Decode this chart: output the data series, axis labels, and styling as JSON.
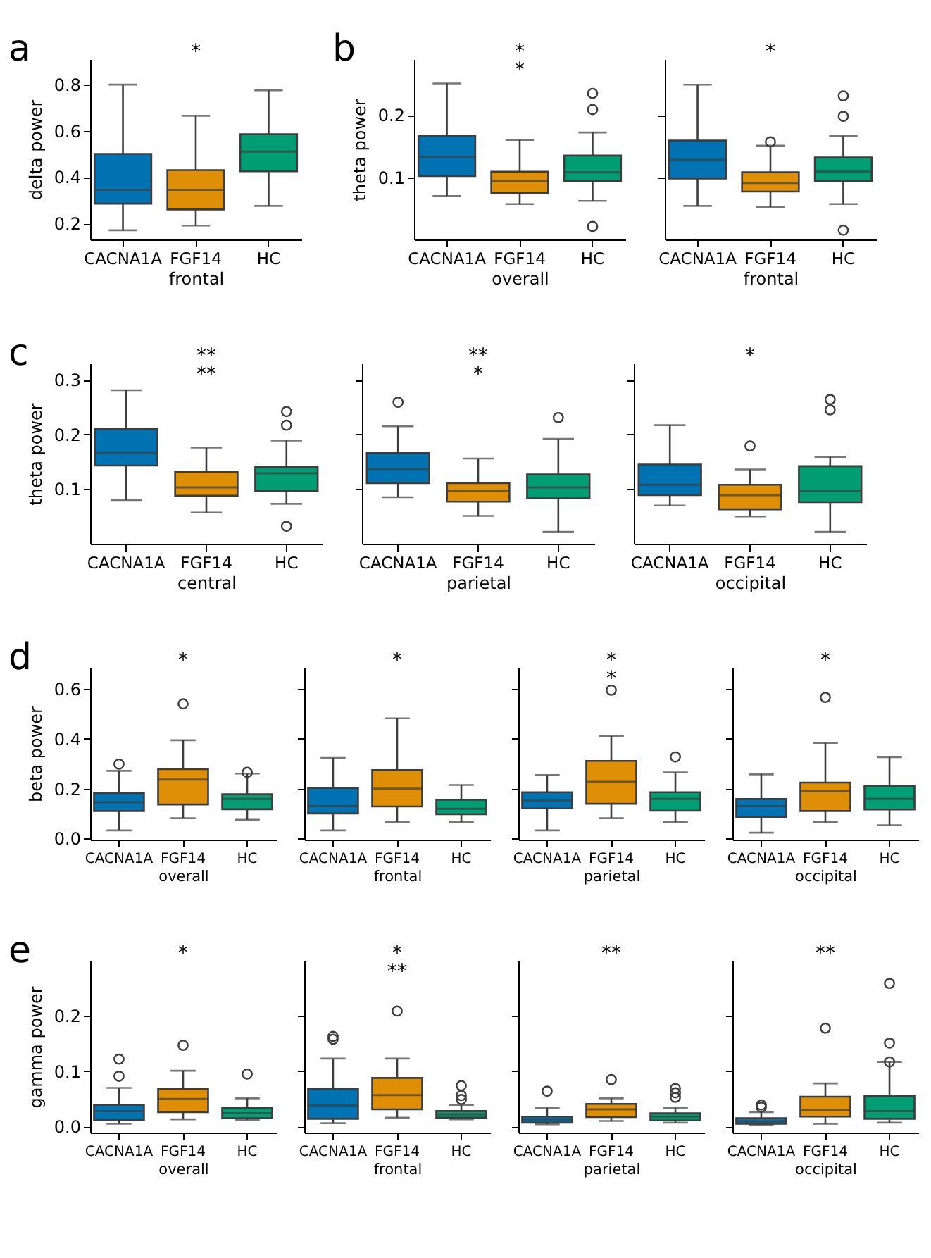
{
  "chart_data": [
    {
      "type": "box",
      "title": "a",
      "ylabel": "delta power",
      "xlabel": "frontal",
      "categories": [
        "CACNA1A",
        "FGF14",
        "HC"
      ],
      "colors": [
        "#0173b2",
        "#de8f05",
        "#029e73"
      ],
      "ylim": [
        0.13,
        0.91
      ],
      "yticks": [
        0.2,
        0.4,
        0.6,
        0.8
      ],
      "boxes": [
        {
          "low": 0.17,
          "q1": 0.285,
          "median": 0.345,
          "q3": 0.5,
          "high": 0.8
        },
        {
          "low": 0.19,
          "q1": 0.26,
          "median": 0.345,
          "q3": 0.43,
          "high": 0.665
        },
        {
          "low": 0.275,
          "q1": 0.425,
          "median": 0.51,
          "q3": 0.585,
          "high": 0.775
        }
      ],
      "annotations": [
        "*"
      ]
    },
    {
      "type": "box",
      "title": "b",
      "ylabel": "theta power",
      "xlabel": "overall",
      "categories": [
        "CACNA1A",
        "FGF14",
        "HC"
      ],
      "colors": [
        "#0173b2",
        "#de8f05",
        "#029e73"
      ],
      "ylim": [
        0.0,
        0.29
      ],
      "yticks": [
        0.1,
        0.2
      ],
      "boxes": [
        {
          "low": 0.07,
          "q1": 0.102,
          "median": 0.133,
          "q3": 0.167,
          "high": 0.251
        },
        {
          "low": 0.057,
          "q1": 0.075,
          "median": 0.094,
          "q3": 0.109,
          "high": 0.16
        },
        {
          "low": 0.062,
          "q1": 0.094,
          "median": 0.108,
          "q3": 0.135,
          "high": 0.172,
          "outliers": [
            0.235,
            0.209,
            0.021
          ]
        }
      ],
      "annotations": [
        "*",
        "*"
      ]
    },
    {
      "type": "box",
      "xlabel": "frontal",
      "categories": [
        "CACNA1A",
        "FGF14",
        "HC"
      ],
      "colors": [
        "#0173b2",
        "#de8f05",
        "#029e73"
      ],
      "ylim": [
        0.0,
        0.29
      ],
      "yticks": [
        {
          "value": 0.1,
          "label": null
        },
        {
          "value": 0.2,
          "label": null
        }
      ],
      "tick_labels": "x",
      "boxes": [
        {
          "low": 0.054,
          "q1": 0.098,
          "median": 0.128,
          "q3": 0.159,
          "high": 0.249
        },
        {
          "low": 0.052,
          "q1": 0.077,
          "median": 0.091,
          "q3": 0.108,
          "high": 0.151,
          "outliers": [
            0.157
          ]
        },
        {
          "low": 0.057,
          "q1": 0.094,
          "median": 0.109,
          "q3": 0.132,
          "high": 0.167,
          "outliers": [
            0.231,
            0.198,
            0.015
          ]
        }
      ],
      "annotations": [
        "*"
      ]
    },
    {
      "type": "box",
      "title": "c",
      "ylabel": "theta power",
      "xlabel": "central",
      "categories": [
        "CACNA1A",
        "FGF14",
        "HC"
      ],
      "colors": [
        "#0173b2",
        "#de8f05",
        "#029e73"
      ],
      "ylim": [
        0.0,
        0.33
      ],
      "yticks": [
        0.1,
        0.2,
        0.3
      ],
      "boxes": [
        {
          "low": 0.08,
          "q1": 0.143,
          "median": 0.166,
          "q3": 0.21,
          "high": 0.281
        },
        {
          "low": 0.057,
          "q1": 0.088,
          "median": 0.103,
          "q3": 0.132,
          "high": 0.176
        },
        {
          "low": 0.073,
          "q1": 0.097,
          "median": 0.129,
          "q3": 0.14,
          "high": 0.189,
          "outliers": [
            0.242,
            0.217,
            0.032
          ]
        }
      ],
      "annotations": [
        "**",
        "**"
      ]
    },
    {
      "type": "box",
      "xlabel": "parietal",
      "categories": [
        "CACNA1A",
        "FGF14",
        "HC"
      ],
      "colors": [
        "#0173b2",
        "#de8f05",
        "#029e73"
      ],
      "ylim": [
        0.0,
        0.33
      ],
      "yticks": [
        {
          "value": 0.1,
          "label": null
        },
        {
          "value": 0.2,
          "label": null
        },
        {
          "value": 0.3,
          "label": null
        }
      ],
      "tick_labels": "x",
      "boxes": [
        {
          "low": 0.085,
          "q1": 0.111,
          "median": 0.137,
          "q3": 0.166,
          "high": 0.215,
          "outliers": [
            0.259
          ]
        },
        {
          "low": 0.051,
          "q1": 0.077,
          "median": 0.097,
          "q3": 0.111,
          "high": 0.156
        },
        {
          "low": 0.022,
          "q1": 0.083,
          "median": 0.103,
          "q3": 0.127,
          "high": 0.192,
          "outliers": [
            0.231
          ]
        }
      ],
      "annotations": [
        "**",
        "*"
      ]
    },
    {
      "type": "box",
      "xlabel": "occipital",
      "categories": [
        "CACNA1A",
        "FGF14",
        "HC"
      ],
      "colors": [
        "#0173b2",
        "#de8f05",
        "#029e73"
      ],
      "ylim": [
        0.0,
        0.33
      ],
      "yticks": [
        {
          "value": 0.1,
          "label": null
        },
        {
          "value": 0.2,
          "label": null
        },
        {
          "value": 0.3,
          "label": null
        }
      ],
      "tick_labels": "x",
      "boxes": [
        {
          "low": 0.07,
          "q1": 0.089,
          "median": 0.108,
          "q3": 0.145,
          "high": 0.217
        },
        {
          "low": 0.05,
          "q1": 0.063,
          "median": 0.089,
          "q3": 0.108,
          "high": 0.136,
          "outliers": [
            0.179
          ]
        },
        {
          "low": 0.022,
          "q1": 0.076,
          "median": 0.097,
          "q3": 0.142,
          "high": 0.159,
          "outliers": [
            0.264,
            0.245
          ]
        }
      ],
      "annotations": [
        "*"
      ]
    },
    {
      "type": "box",
      "title": "d",
      "ylabel": "beta power",
      "xlabel": "overall",
      "categories": [
        "CACNA1A",
        "FGF14",
        "HC"
      ],
      "colors": [
        "#0173b2",
        "#de8f05",
        "#029e73"
      ],
      "ylim": [
        -0.005,
        0.685
      ],
      "yticks": [
        {
          "value": 0,
          "label": "0.0"
        },
        0.2,
        0.4,
        0.6
      ],
      "boxes": [
        {
          "low": 0.032,
          "q1": 0.11,
          "median": 0.145,
          "q3": 0.182,
          "high": 0.271,
          "outliers": [
            0.298
          ]
        },
        {
          "low": 0.081,
          "q1": 0.136,
          "median": 0.236,
          "q3": 0.278,
          "high": 0.394,
          "outliers": [
            0.54
          ]
        },
        {
          "low": 0.075,
          "q1": 0.117,
          "median": 0.158,
          "q3": 0.177,
          "high": 0.26,
          "outliers": [
            0.265
          ]
        }
      ],
      "annotations": [
        "*"
      ]
    },
    {
      "type": "box",
      "xlabel": "frontal",
      "categories": [
        "CACNA1A",
        "FGF14",
        "HC"
      ],
      "colors": [
        "#0173b2",
        "#de8f05",
        "#029e73"
      ],
      "ylim": [
        -0.005,
        0.685
      ],
      "yticks": [
        {
          "value": 0,
          "label": null
        },
        {
          "value": 0.2,
          "label": null
        },
        {
          "value": 0.4,
          "label": null
        },
        {
          "value": 0.6,
          "label": null
        }
      ],
      "tick_labels": "x",
      "boxes": [
        {
          "low": 0.032,
          "q1": 0.1,
          "median": 0.129,
          "q3": 0.202,
          "high": 0.323
        },
        {
          "low": 0.066,
          "q1": 0.128,
          "median": 0.199,
          "q3": 0.274,
          "high": 0.482
        },
        {
          "low": 0.065,
          "q1": 0.097,
          "median": 0.119,
          "q3": 0.155,
          "high": 0.214
        }
      ],
      "annotations": [
        "*"
      ]
    },
    {
      "type": "box",
      "xlabel": "parietal",
      "categories": [
        "CACNA1A",
        "FGF14",
        "HC"
      ],
      "colors": [
        "#0173b2",
        "#de8f05",
        "#029e73"
      ],
      "ylim": [
        -0.005,
        0.685
      ],
      "yticks": [
        {
          "value": 0,
          "label": null
        },
        {
          "value": 0.2,
          "label": null
        },
        {
          "value": 0.4,
          "label": null
        },
        {
          "value": 0.6,
          "label": null
        }
      ],
      "tick_labels": "x",
      "boxes": [
        {
          "low": 0.032,
          "q1": 0.12,
          "median": 0.151,
          "q3": 0.185,
          "high": 0.254
        },
        {
          "low": 0.081,
          "q1": 0.139,
          "median": 0.227,
          "q3": 0.311,
          "high": 0.411,
          "outliers": [
            0.595
          ]
        },
        {
          "low": 0.065,
          "q1": 0.111,
          "median": 0.158,
          "q3": 0.185,
          "high": 0.265,
          "outliers": [
            0.327
          ]
        }
      ],
      "annotations": [
        "*",
        "*"
      ]
    },
    {
      "type": "box",
      "xlabel": "occipital",
      "categories": [
        "CACNA1A",
        "FGF14",
        "HC"
      ],
      "colors": [
        "#0173b2",
        "#de8f05",
        "#029e73"
      ],
      "ylim": [
        -0.005,
        0.685
      ],
      "yticks": [
        {
          "value": 0,
          "label": null
        },
        {
          "value": 0.2,
          "label": null
        },
        {
          "value": 0.4,
          "label": null
        },
        {
          "value": 0.6,
          "label": null
        }
      ],
      "tick_labels": "x",
      "boxes": [
        {
          "low": 0.023,
          "q1": 0.085,
          "median": 0.129,
          "q3": 0.158,
          "high": 0.257
        },
        {
          "low": 0.065,
          "q1": 0.11,
          "median": 0.189,
          "q3": 0.224,
          "high": 0.383,
          "outliers": [
            0.566
          ]
        },
        {
          "low": 0.053,
          "q1": 0.116,
          "median": 0.158,
          "q3": 0.21,
          "high": 0.326
        }
      ],
      "annotations": [
        "*"
      ]
    },
    {
      "type": "box",
      "title": "e",
      "ylabel": "gamma power",
      "xlabel": "overall",
      "categories": [
        "CACNA1A",
        "FGF14",
        "HC"
      ],
      "colors": [
        "#0173b2",
        "#de8f05",
        "#029e73"
      ],
      "ylim": [
        -0.011,
        0.3
      ],
      "yticks": [
        {
          "value": 0,
          "label": "0.0"
        },
        0.1,
        0.2
      ],
      "boxes": [
        {
          "low": 0.005,
          "q1": 0.012,
          "median": 0.028,
          "q3": 0.039,
          "high": 0.07,
          "outliers": [
            0.122,
            0.091
          ]
        },
        {
          "low": 0.013,
          "q1": 0.026,
          "median": 0.05,
          "q3": 0.068,
          "high": 0.101,
          "outliers": [
            0.147
          ]
        },
        {
          "low": 0.012,
          "q1": 0.015,
          "median": 0.024,
          "q3": 0.034,
          "high": 0.051,
          "outliers": [
            0.095
          ]
        }
      ],
      "annotations": [
        "*"
      ]
    },
    {
      "type": "box",
      "xlabel": "frontal",
      "categories": [
        "CACNA1A",
        "FGF14",
        "HC"
      ],
      "colors": [
        "#0173b2",
        "#de8f05",
        "#029e73"
      ],
      "ylim": [
        -0.011,
        0.3
      ],
      "yticks": [
        {
          "value": 0,
          "label": null
        },
        {
          "value": 0.1,
          "label": null
        },
        {
          "value": 0.2,
          "label": null
        }
      ],
      "tick_labels": "x",
      "boxes": [
        {
          "low": 0.006,
          "q1": 0.014,
          "median": 0.038,
          "q3": 0.068,
          "high": 0.123,
          "outliers": [
            0.163,
            0.158
          ]
        },
        {
          "low": 0.016,
          "q1": 0.031,
          "median": 0.057,
          "q3": 0.088,
          "high": 0.123,
          "outliers": [
            0.209
          ]
        },
        {
          "low": 0.013,
          "q1": 0.016,
          "median": 0.022,
          "q3": 0.028,
          "high": 0.039,
          "outliers": [
            0.074,
            0.056,
            0.049
          ]
        }
      ],
      "annotations": [
        "*",
        "**"
      ]
    },
    {
      "type": "box",
      "xlabel": "parietal",
      "categories": [
        "CACNA1A",
        "FGF14",
        "HC"
      ],
      "colors": [
        "#0173b2",
        "#de8f05",
        "#029e73"
      ],
      "ylim": [
        -0.011,
        0.3
      ],
      "yticks": [
        {
          "value": 0,
          "label": null
        },
        {
          "value": 0.1,
          "label": null
        },
        {
          "value": 0.2,
          "label": null
        }
      ],
      "tick_labels": "x",
      "boxes": [
        {
          "low": 0.004,
          "q1": 0.007,
          "median": 0.013,
          "q3": 0.018,
          "high": 0.034,
          "outliers": [
            0.064
          ]
        },
        {
          "low": 0.01,
          "q1": 0.017,
          "median": 0.031,
          "q3": 0.041,
          "high": 0.051,
          "outliers": [
            0.085
          ]
        },
        {
          "low": 0.007,
          "q1": 0.011,
          "median": 0.018,
          "q3": 0.024,
          "high": 0.034,
          "outliers": [
            0.069,
            0.061,
            0.053
          ]
        }
      ],
      "annotations": [
        "**"
      ]
    },
    {
      "type": "box",
      "xlabel": "occipital",
      "categories": [
        "CACNA1A",
        "FGF14",
        "HC"
      ],
      "colors": [
        "#0173b2",
        "#de8f05",
        "#029e73"
      ],
      "ylim": [
        -0.011,
        0.3
      ],
      "yticks": [
        {
          "value": 0,
          "label": null
        },
        {
          "value": 0.1,
          "label": null
        },
        {
          "value": 0.2,
          "label": null
        }
      ],
      "tick_labels": "x",
      "boxes": [
        {
          "low": 0.003,
          "q1": 0.005,
          "median": 0.009,
          "q3": 0.015,
          "high": 0.026,
          "outliers": [
            0.039,
            0.035
          ]
        },
        {
          "low": 0.005,
          "q1": 0.018,
          "median": 0.03,
          "q3": 0.054,
          "high": 0.078,
          "outliers": [
            0.178
          ]
        },
        {
          "low": 0.007,
          "q1": 0.014,
          "median": 0.028,
          "q3": 0.055,
          "high": 0.117,
          "outliers": [
            0.259,
            0.151,
            0.117
          ]
        }
      ],
      "annotations": [
        "**"
      ]
    }
  ]
}
